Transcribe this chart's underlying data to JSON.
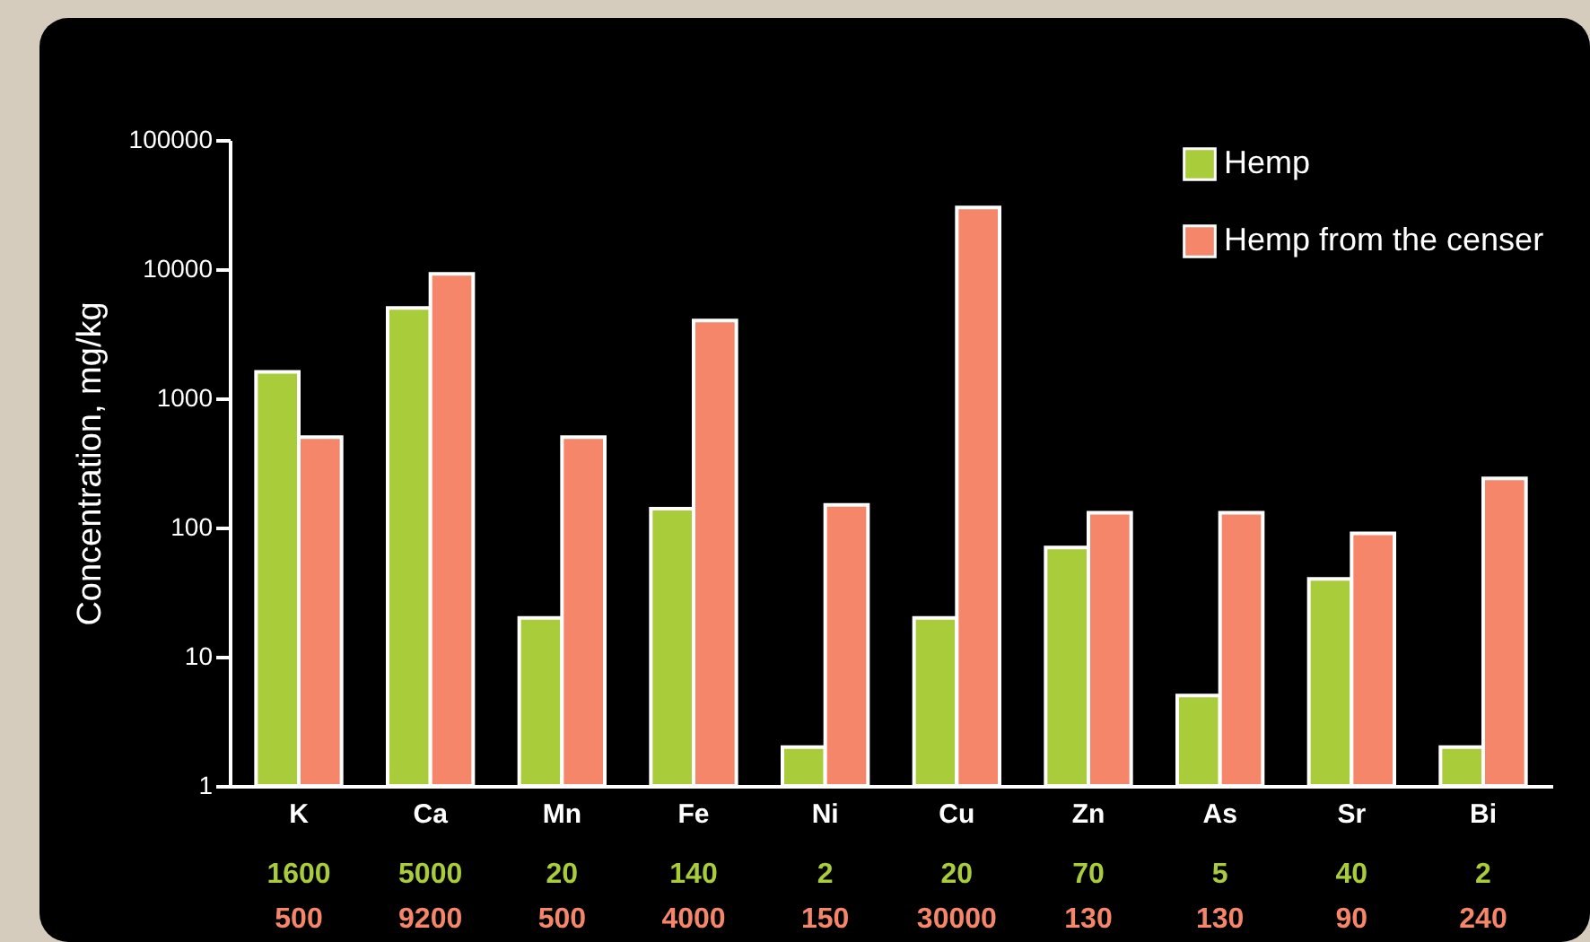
{
  "chart_data": {
    "type": "bar",
    "ylabel": "Concentration, mg/kg",
    "categories": [
      "K",
      "Ca",
      "Mn",
      "Fe",
      "Ni",
      "Cu",
      "Zn",
      "As",
      "Sr",
      "Bi"
    ],
    "series": [
      {
        "name": "Hemp",
        "color": "#a8cc3a",
        "values": [
          1600,
          5000,
          20,
          140,
          2,
          20,
          70,
          5,
          40,
          2
        ]
      },
      {
        "name": "Hemp from the censer",
        "color": "#f5866a",
        "values": [
          500,
          9200,
          500,
          4000,
          150,
          30000,
          130,
          130,
          90,
          240
        ]
      }
    ],
    "ylim": [
      1,
      100000
    ],
    "yticks": [
      1,
      10,
      100,
      1000,
      10000,
      100000
    ],
    "log": true,
    "legend": "top right",
    "data_labels": true
  }
}
